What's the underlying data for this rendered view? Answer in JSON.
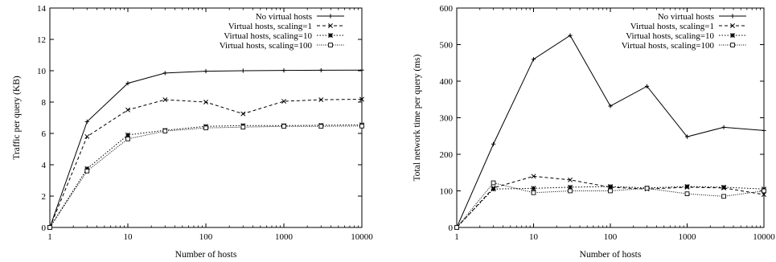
{
  "chart_data": [
    {
      "type": "line",
      "title": "",
      "xlabel": "Number of hosts",
      "ylabel": "Traffic per query (KB)",
      "xscale": "log",
      "xlim": [
        1,
        10000
      ],
      "ylim": [
        0,
        14
      ],
      "x": [
        1,
        3,
        10,
        30,
        100,
        300,
        1000,
        3000,
        10000
      ],
      "xticks": [
        1,
        10,
        100,
        1000,
        10000
      ],
      "xtick_labels": [
        "1",
        "10",
        "100",
        "1000",
        "10000"
      ],
      "yticks": [
        0,
        2,
        4,
        6,
        8,
        10,
        12,
        14
      ],
      "ytick_labels": [
        "0",
        "2",
        "4",
        "6",
        "8",
        "10",
        "12",
        "14"
      ],
      "legend_position": "top-right",
      "grid": false,
      "series": [
        {
          "name": "No virtual hosts",
          "values": [
            0,
            6.75,
            9.2,
            9.85,
            9.97,
            10.0,
            10.02,
            10.03,
            10.04
          ]
        },
        {
          "name": "Virtual hosts, scaling=1",
          "values": [
            0,
            5.8,
            7.5,
            8.15,
            8.0,
            7.25,
            8.05,
            8.15,
            8.18
          ]
        },
        {
          "name": "Virtual hosts, scaling=10",
          "values": [
            0,
            3.75,
            5.9,
            6.2,
            6.45,
            6.5,
            6.5,
            6.52,
            6.55
          ]
        },
        {
          "name": "Virtual hosts, scaling=100",
          "values": [
            0,
            3.6,
            5.65,
            6.15,
            6.35,
            6.4,
            6.45,
            6.45,
            6.47
          ]
        }
      ]
    },
    {
      "type": "line",
      "title": "",
      "xlabel": "Number of hosts",
      "ylabel": "Total network time per query (ms)",
      "xscale": "log",
      "xlim": [
        1,
        10000
      ],
      "ylim": [
        0,
        600
      ],
      "x": [
        1,
        3,
        10,
        30,
        100,
        300,
        1000,
        3000,
        10000
      ],
      "xticks": [
        1,
        10,
        100,
        1000,
        10000
      ],
      "xtick_labels": [
        "1",
        "10",
        "100",
        "1000",
        "10000"
      ],
      "yticks": [
        0,
        100,
        200,
        300,
        400,
        500,
        600
      ],
      "ytick_labels": [
        "0",
        "100",
        "200",
        "300",
        "400",
        "500",
        "600"
      ],
      "legend_position": "top-right",
      "grid": false,
      "series": [
        {
          "name": "No virtual hosts",
          "values": [
            0,
            228,
            460,
            525,
            332,
            386,
            248,
            274,
            265
          ]
        },
        {
          "name": "Virtual hosts, scaling=1",
          "values": [
            0,
            108,
            140,
            130,
            110,
            105,
            110,
            108,
            90
          ]
        },
        {
          "name": "Virtual hosts, scaling=10",
          "values": [
            0,
            105,
            107,
            110,
            112,
            108,
            112,
            110,
            105
          ]
        },
        {
          "name": "Virtual hosts, scaling=100",
          "values": [
            0,
            122,
            95,
            100,
            100,
            107,
            92,
            85,
            100
          ]
        }
      ]
    }
  ],
  "series_styles": [
    {
      "dash": "",
      "marker": "plus"
    },
    {
      "dash": "4,3",
      "marker": "cross"
    },
    {
      "dash": "1.5,2",
      "marker": "star"
    },
    {
      "dash": "1,1.5",
      "marker": "square"
    }
  ],
  "colors": {
    "line": "#000000",
    "background": "#ffffff"
  }
}
